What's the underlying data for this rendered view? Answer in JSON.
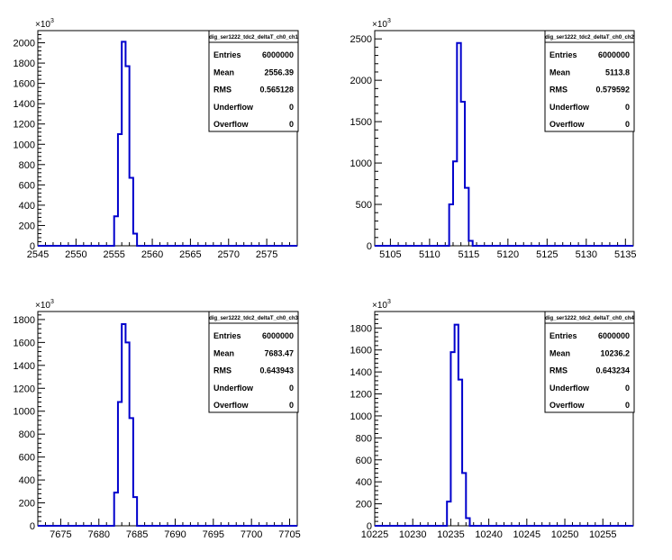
{
  "chart_data": [
    {
      "type": "bar",
      "name": "dig_ser1222_tdc2_deltaT_ch0_ch1",
      "multiplier": "×10",
      "multiplier_exp": "3",
      "xlim": [
        2545,
        2579
      ],
      "xticks": [
        2545,
        2550,
        2555,
        2560,
        2565,
        2570,
        2575
      ],
      "ylim": [
        0,
        2120
      ],
      "yticks": [
        0,
        200,
        400,
        600,
        800,
        1000,
        1200,
        1400,
        1600,
        1800,
        2000
      ],
      "bin_width": 0.5,
      "bin_edges": [
        2555.0,
        2555.5,
        2556.0,
        2556.5,
        2557.0,
        2557.5,
        2558.0
      ],
      "values": [
        290,
        1100,
        2010,
        1770,
        670,
        120
      ],
      "stats": [
        {
          "label": "Entries",
          "value": "6000000"
        },
        {
          "label": "Mean",
          "value": "2556.39"
        },
        {
          "label": "RMS",
          "value": "0.565128"
        },
        {
          "label": "Underflow",
          "value": "0"
        },
        {
          "label": "Overflow",
          "value": "0"
        }
      ]
    },
    {
      "type": "bar",
      "name": "dig_ser1222_tdc2_deltaT_ch0_ch2",
      "multiplier": "×10",
      "multiplier_exp": "3",
      "xlim": [
        5103,
        5136
      ],
      "xticks": [
        5105,
        5110,
        5115,
        5120,
        5125,
        5130,
        5135
      ],
      "ylim": [
        0,
        2600
      ],
      "yticks": [
        0,
        500,
        1000,
        1500,
        2000,
        2500
      ],
      "bin_width": 0.5,
      "bin_edges": [
        5112.5,
        5113.0,
        5113.5,
        5114.0,
        5114.5,
        5115.0,
        5115.5
      ],
      "values": [
        500,
        1020,
        2450,
        1740,
        700,
        60
      ],
      "stats": [
        {
          "label": "Entries",
          "value": "6000000"
        },
        {
          "label": "Mean",
          "value": "5113.8"
        },
        {
          "label": "RMS",
          "value": "0.579592"
        },
        {
          "label": "Underflow",
          "value": "0"
        },
        {
          "label": "Overflow",
          "value": "0"
        }
      ]
    },
    {
      "type": "bar",
      "name": "dig_ser1222_tdc2_deltaT_ch0_ch3",
      "multiplier": "×10",
      "multiplier_exp": "3",
      "xlim": [
        7672,
        7706
      ],
      "xticks": [
        7675,
        7680,
        7685,
        7690,
        7695,
        7700,
        7705
      ],
      "ylim": [
        0,
        1870
      ],
      "yticks": [
        0,
        200,
        400,
        600,
        800,
        1000,
        1200,
        1400,
        1600,
        1800
      ],
      "bin_width": 0.5,
      "bin_edges": [
        7682.0,
        7682.5,
        7683.0,
        7683.5,
        7684.0,
        7684.5,
        7685.0
      ],
      "values": [
        290,
        1080,
        1760,
        1600,
        940,
        250
      ],
      "stats": [
        {
          "label": "Entries",
          "value": "6000000"
        },
        {
          "label": "Mean",
          "value": "7683.47"
        },
        {
          "label": "RMS",
          "value": "0.643943"
        },
        {
          "label": "Underflow",
          "value": "0"
        },
        {
          "label": "Overflow",
          "value": "0"
        }
      ]
    },
    {
      "type": "bar",
      "name": "dig_ser1222_tdc2_deltaT_ch0_ch4",
      "multiplier": "×10",
      "multiplier_exp": "3",
      "xlim": [
        10225,
        10259
      ],
      "xticks": [
        10225,
        10230,
        10235,
        10240,
        10245,
        10250,
        10255
      ],
      "ylim": [
        0,
        1950
      ],
      "yticks": [
        0,
        200,
        400,
        600,
        800,
        1000,
        1200,
        1400,
        1600,
        1800
      ],
      "bin_width": 0.5,
      "bin_edges": [
        10234.5,
        10235.0,
        10235.5,
        10236.0,
        10236.5,
        10237.0,
        10237.5
      ],
      "values": [
        220,
        1580,
        1830,
        1330,
        480,
        70
      ],
      "stats": [
        {
          "label": "Entries",
          "value": "6000000"
        },
        {
          "label": "Mean",
          "value": "10236.2"
        },
        {
          "label": "RMS",
          "value": "0.643234"
        },
        {
          "label": "Underflow",
          "value": "0"
        },
        {
          "label": "Overflow",
          "value": "0"
        }
      ]
    }
  ]
}
